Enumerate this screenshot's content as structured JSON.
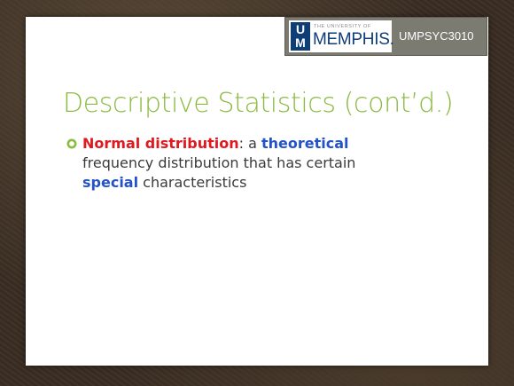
{
  "header": {
    "university_small": "THE UNIVERSITY OF",
    "university_name": "MEMPHIS",
    "university_dot": ".",
    "logo_mark_top": "U",
    "logo_mark_bottom": "M",
    "course_code": "UMPSYC3010"
  },
  "slide": {
    "title": "Descriptive Statistics (cont’d.)",
    "bullets": [
      {
        "term": "Normal distribution",
        "text_a": ": a ",
        "emph1": "theoretical",
        "text_b": "frequency distribution that has certain",
        "emph2": "special",
        "text_c": " characteristics"
      }
    ]
  },
  "colors": {
    "title": "#8bbb40",
    "term": "#e0191f",
    "emphasis": "#2452c8",
    "body_text": "#3a3a3a",
    "bullet_marker": "#8bbb40",
    "banner": "#7b7b72",
    "brand_blue": "#0f3d75",
    "background": "#3a2d22"
  },
  "icons": {
    "bullet": "circle-bullet-icon",
    "logo": "um-monogram-icon"
  }
}
